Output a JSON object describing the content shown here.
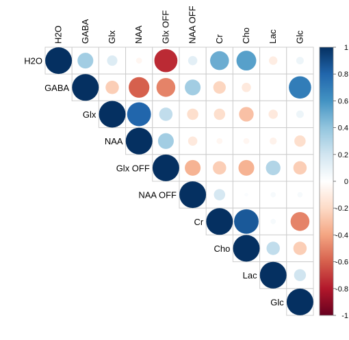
{
  "chart_data": {
    "type": "heatmap",
    "subtype": "correlation-matrix-upper-triangle-circles",
    "variables": [
      "H2O",
      "GABA",
      "Glx",
      "NAA",
      "Glx OFF",
      "NAA OFF",
      "Cr",
      "Cho",
      "Lac",
      "Glc"
    ],
    "matrix": [
      [
        1,
        0.35,
        0.15,
        -0.05,
        -0.75,
        0.12,
        0.5,
        0.55,
        -0.1,
        0.08
      ],
      [
        null,
        1,
        -0.25,
        -0.6,
        -0.5,
        0.35,
        -0.22,
        -0.12,
        0.0,
        0.7
      ],
      [
        null,
        null,
        1,
        0.8,
        0.25,
        -0.18,
        -0.18,
        -0.3,
        -0.12,
        0.08
      ],
      [
        null,
        null,
        null,
        1,
        0.35,
        -0.12,
        -0.05,
        -0.05,
        -0.07,
        -0.18
      ],
      [
        null,
        null,
        null,
        null,
        1,
        -0.35,
        -0.25,
        -0.35,
        0.3,
        -0.25
      ],
      [
        null,
        null,
        null,
        null,
        null,
        1,
        0.18,
        0.02,
        0.04,
        0.04
      ],
      [
        null,
        null,
        null,
        null,
        null,
        null,
        1,
        0.85,
        0.04,
        -0.5
      ],
      [
        null,
        null,
        null,
        null,
        null,
        null,
        null,
        1,
        0.25,
        -0.25
      ],
      [
        null,
        null,
        null,
        null,
        null,
        null,
        null,
        null,
        1,
        0.2
      ],
      [
        null,
        null,
        null,
        null,
        null,
        null,
        null,
        null,
        null,
        1
      ]
    ],
    "colorbar": {
      "ticks": [
        "1",
        "0.8",
        "0.6",
        "0.4",
        "0.2",
        "0",
        "-0.2",
        "-0.4",
        "-0.6",
        "-0.8",
        "-1"
      ],
      "range": [
        -1,
        1
      ],
      "placement": "right"
    },
    "colors": {
      "positive_end": "#053061",
      "negative_end": "#67001f",
      "mid": "#ffffff",
      "grid": "#cccccc"
    },
    "grid": true
  }
}
